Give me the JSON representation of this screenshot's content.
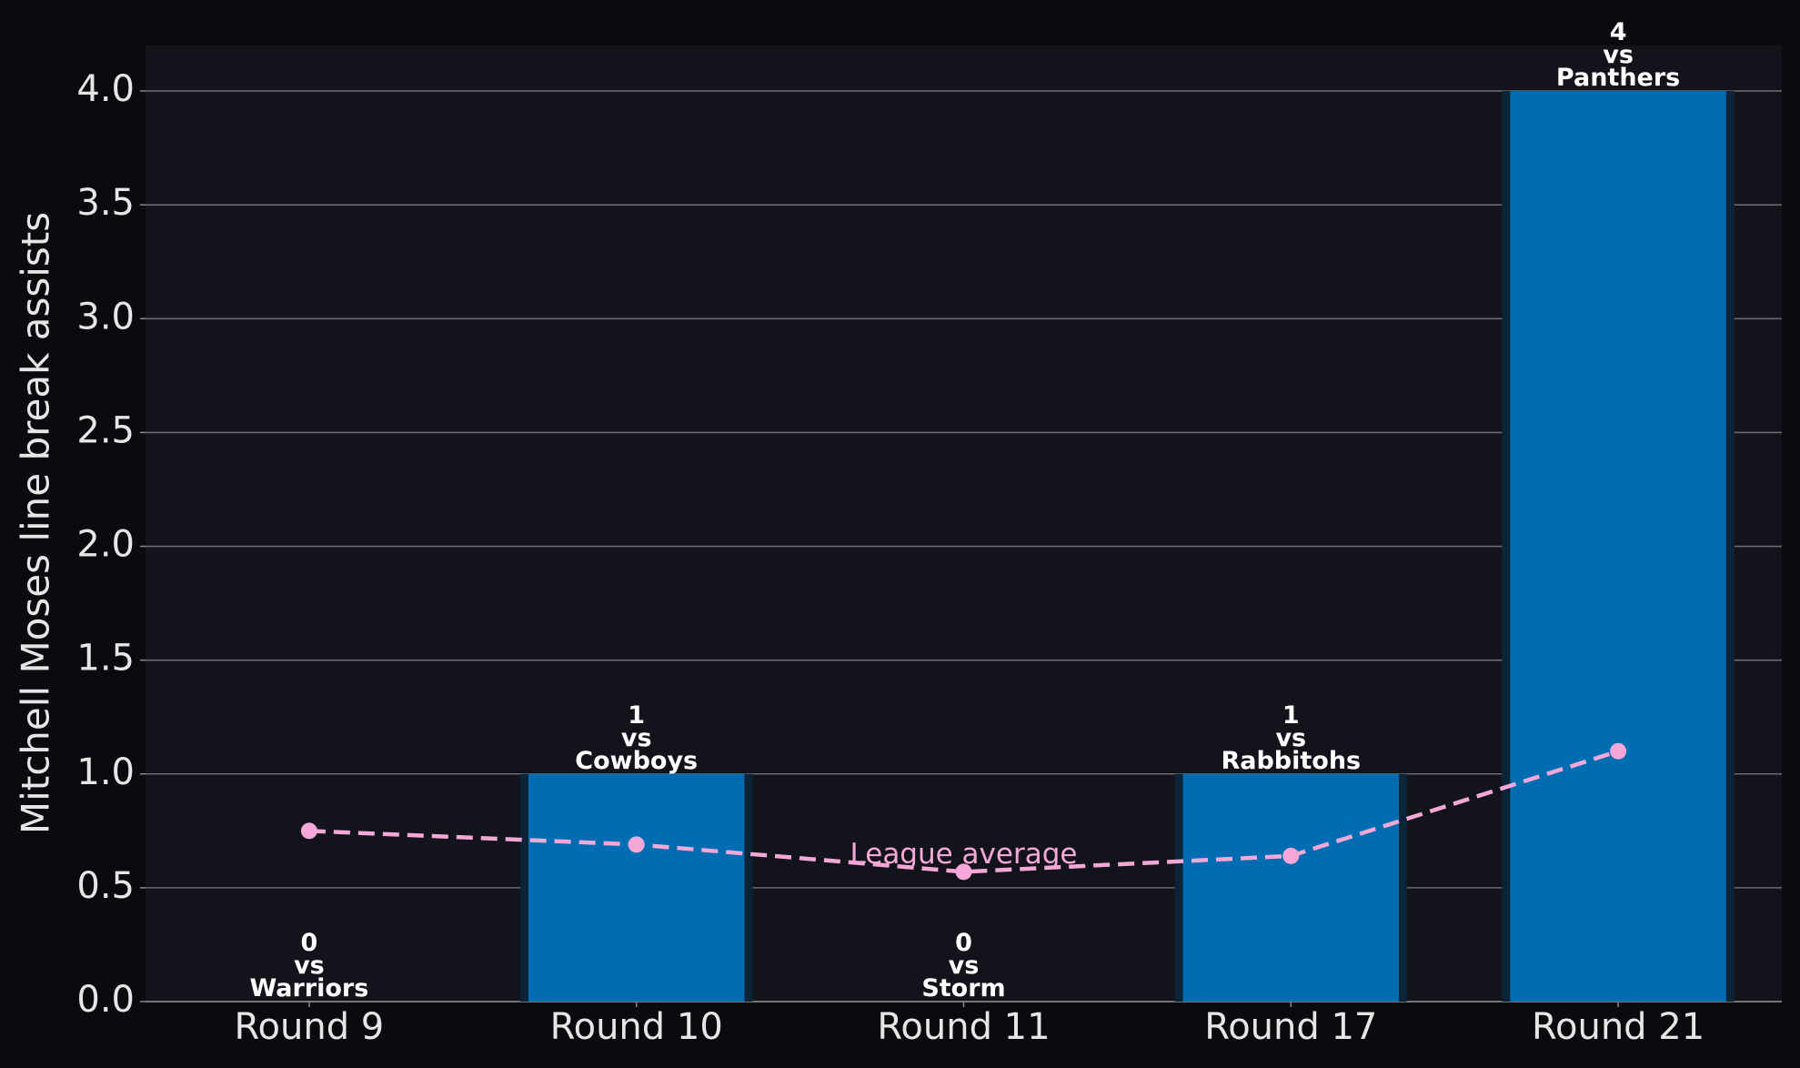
{
  "chart_data": {
    "type": "bar",
    "y_label": "Mitchell Moses line break assists",
    "categories": [
      "Round 9",
      "Round 10",
      "Round 11",
      "Round 17",
      "Round 21"
    ],
    "values": [
      0,
      1,
      0,
      1,
      4
    ],
    "value_labels": [
      "0\nvs\nWarriors",
      "1\nvs\nCowboys",
      "0\nvs\nStorm",
      "1\nvs\nRabbitohs",
      "4\nvs\nPanthers"
    ],
    "color": "#006db3",
    "series": [
      {
        "name": "League average",
        "color": "#f5a8d8",
        "values": [
          0.75,
          0.69,
          0.57,
          0.64,
          1.1
        ]
      }
    ],
    "ylim": [
      0,
      4.2
    ],
    "yticks": [
      {
        "value": 0,
        "label": "0.0"
      },
      {
        "value": 0.5,
        "label": "0.5"
      },
      {
        "value": 1,
        "label": "1.0"
      },
      {
        "value": 1.5,
        "label": "1.5"
      },
      {
        "value": 2,
        "label": "2.0"
      },
      {
        "value": 2.5,
        "label": "2.5"
      },
      {
        "value": 3,
        "label": "3.0"
      },
      {
        "value": 3.5,
        "label": "3.5"
      },
      {
        "value": 4,
        "label": "4.0"
      }
    ],
    "grid": true
  }
}
